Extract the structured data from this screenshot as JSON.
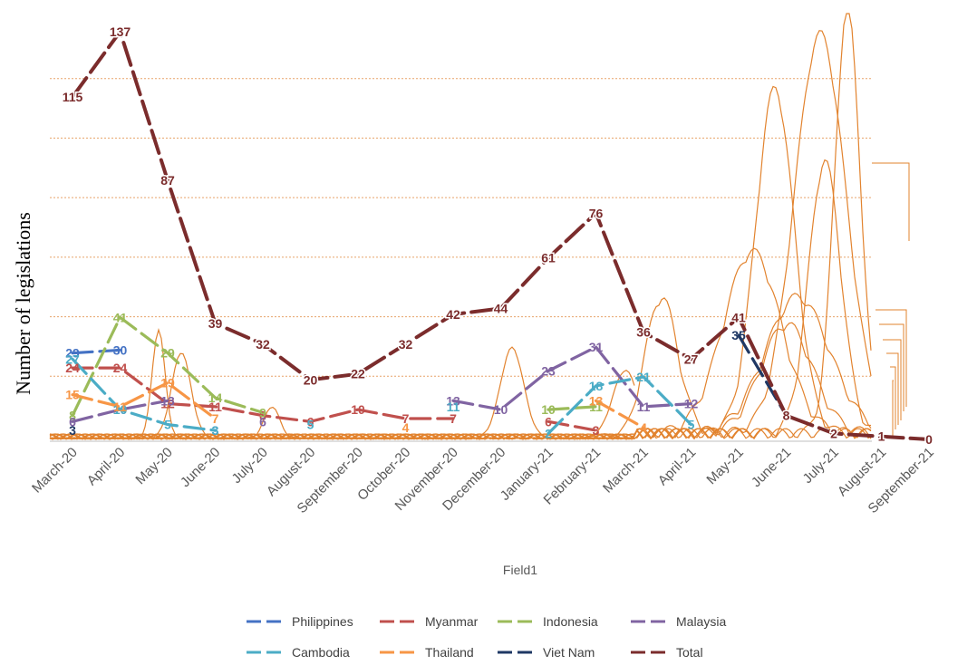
{
  "chart_data": {
    "type": "line",
    "title": "",
    "xlabel": "Field1",
    "ylabel": "Number of legislations",
    "ylim": [
      0,
      140
    ],
    "grid": true,
    "legend": "bottom",
    "categories": [
      "March-20",
      "April-20",
      "May-20",
      "June-20",
      "July-20",
      "August-20",
      "September-20",
      "October-20",
      "November-20",
      "December-20",
      "January-21",
      "February-21",
      "March-21",
      "April-21",
      "May-21",
      "June-21",
      "July-21",
      "August-21",
      "September-21"
    ],
    "series": [
      {
        "name": "Philippines",
        "color": "#4472C4",
        "values": [
          29,
          30,
          null,
          3,
          null,
          null,
          null,
          null,
          null,
          null,
          null,
          null,
          null,
          null,
          null,
          null,
          null,
          null,
          null
        ]
      },
      {
        "name": "Myanmar",
        "color": "#C0504D",
        "values": [
          24,
          24,
          12,
          11,
          8,
          6,
          10,
          7,
          7,
          null,
          6,
          3,
          null,
          null,
          null,
          null,
          null,
          null,
          null
        ]
      },
      {
        "name": "Indonesia",
        "color": "#9BBB59",
        "values": [
          8,
          41,
          29,
          14,
          9,
          null,
          null,
          null,
          null,
          null,
          10,
          11,
          null,
          null,
          null,
          null,
          null,
          null,
          null
        ]
      },
      {
        "name": "Malaysia",
        "color": "#8064A2",
        "values": [
          6,
          10,
          13,
          null,
          6,
          null,
          null,
          null,
          13,
          10,
          23,
          31,
          11,
          12,
          null,
          null,
          null,
          null,
          null
        ]
      },
      {
        "name": "Cambodia",
        "color": "#4BACC6",
        "values": [
          27,
          10,
          5,
          3,
          null,
          5,
          null,
          null,
          11,
          null,
          2,
          18,
          21,
          5,
          null,
          null,
          null,
          null,
          null
        ]
      },
      {
        "name": "Thailand",
        "color": "#F79646",
        "values": [
          15,
          11,
          19,
          7,
          null,
          null,
          null,
          4,
          null,
          null,
          null,
          13,
          4,
          null,
          null,
          null,
          null,
          null,
          null
        ]
      },
      {
        "name": "Viet Nam",
        "color": "#1F3864",
        "values": [
          3,
          null,
          null,
          null,
          null,
          null,
          null,
          null,
          null,
          null,
          null,
          null,
          null,
          null,
          35,
          8,
          null,
          null,
          null
        ]
      },
      {
        "name": "Total",
        "color": "#7B2C2C",
        "values": [
          115,
          137,
          87,
          39,
          32,
          20,
          22,
          32,
          42,
          44,
          61,
          76,
          36,
          27,
          41,
          8,
          2,
          1,
          0
        ]
      }
    ]
  }
}
